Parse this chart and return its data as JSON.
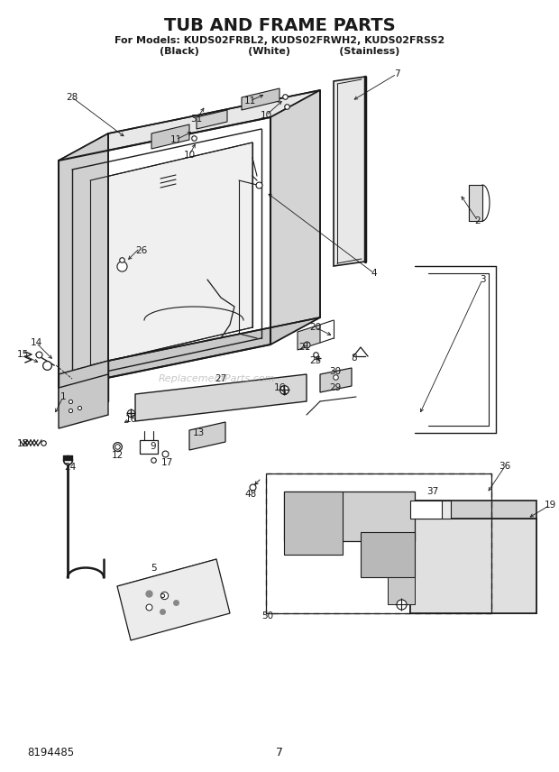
{
  "title": "TUB AND FRAME PARTS",
  "subtitle_line1": "For Models: KUDS02FRBL2, KUDS02FRWH2, KUDS02FRSS2",
  "subtitle_line2": "(Black)              (White)              (Stainless)",
  "part_number": "8194485",
  "page_number": "7",
  "bg_color": "#ffffff",
  "lc": "#1a1a1a",
  "watermark": "ReplacementParts.com"
}
